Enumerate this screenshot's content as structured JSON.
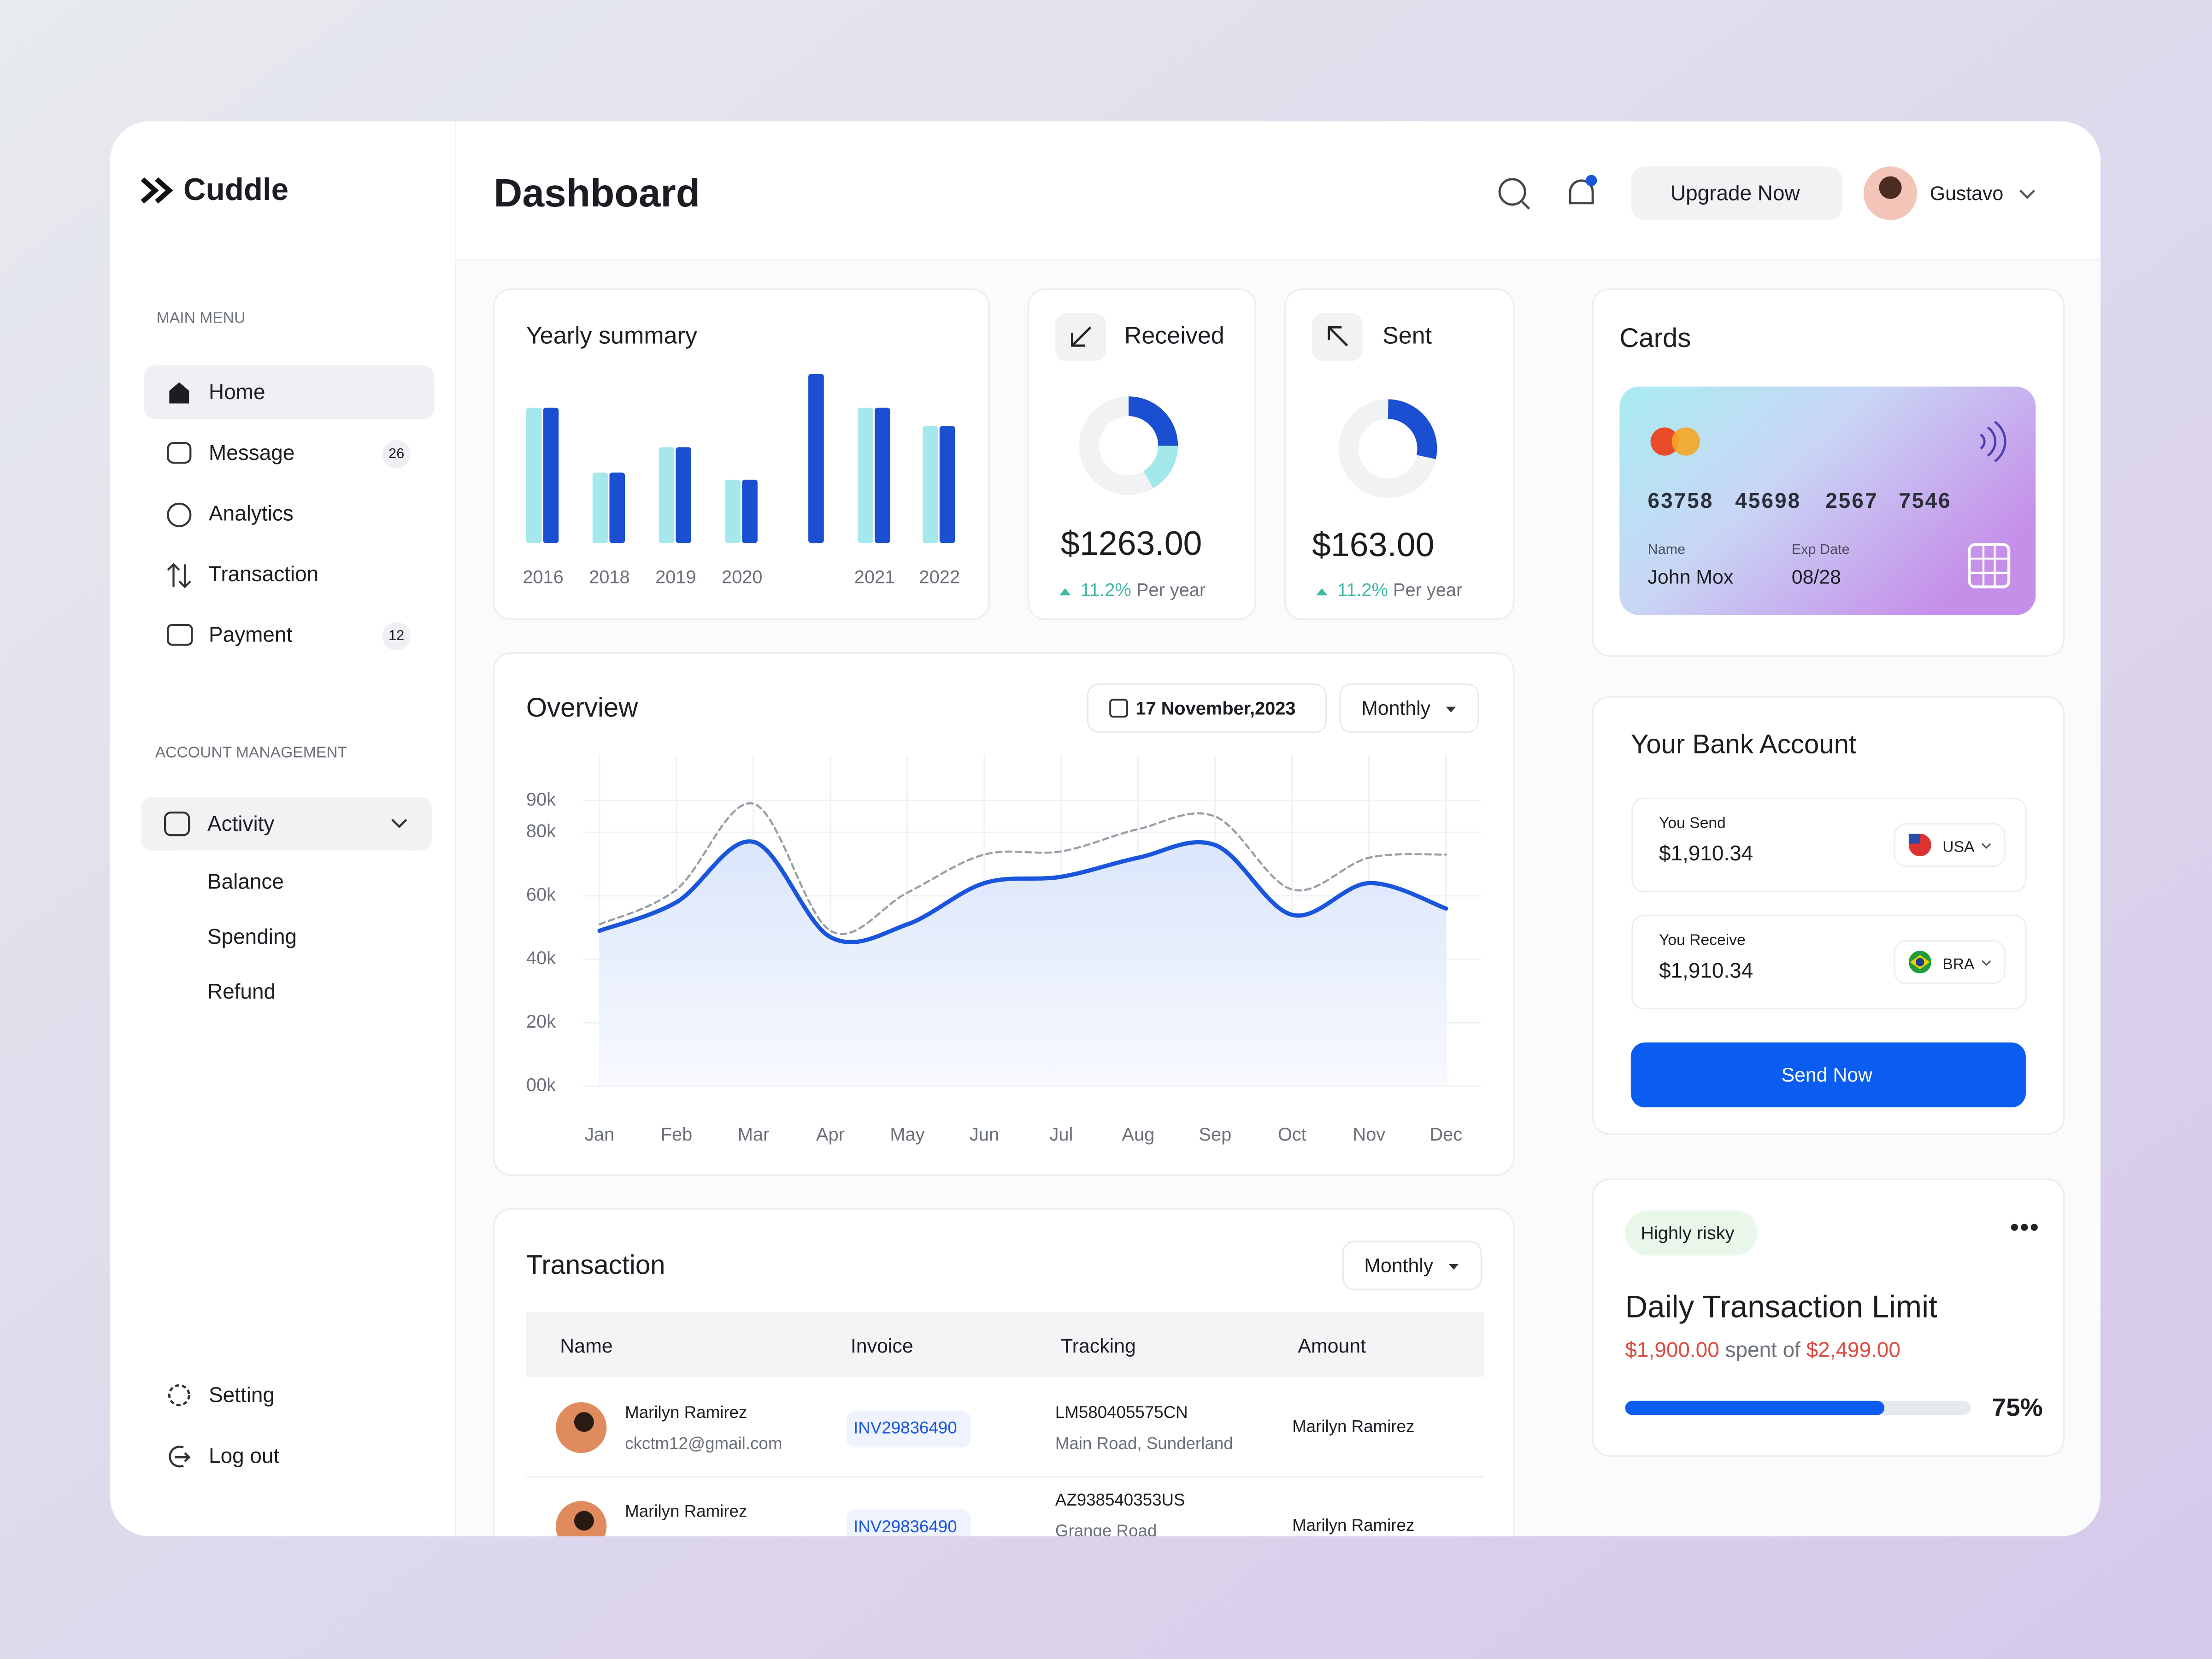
{
  "brand": "Cuddle",
  "header": {
    "title": "Dashboard",
    "upgrade": "Upgrade Now",
    "user": "Gustavo"
  },
  "sidebar": {
    "main_menu_label": "MAIN MENU",
    "main_menu": [
      {
        "label": "Home"
      },
      {
        "label": "Message",
        "badge": "26"
      },
      {
        "label": "Analytics"
      },
      {
        "label": "Transaction"
      },
      {
        "label": "Payment",
        "badge": "12"
      }
    ],
    "account_label": "ACCOUNT MANAGEMENT",
    "activity": "Activity",
    "activity_items": [
      "Balance",
      "Spending",
      "Refund"
    ],
    "footer": [
      "Setting",
      "Log out"
    ]
  },
  "yearly_summary": {
    "title": "Yearly summary",
    "categories": [
      "2016",
      "2018",
      "2019",
      "2020",
      "2021",
      "2022"
    ],
    "series": [
      {
        "color": "#a5e8ec",
        "values": [
          96,
          50,
          68,
          45,
          96,
          83
        ]
      },
      {
        "color": "#1b4fd1",
        "values": [
          96,
          50,
          68,
          45,
          96,
          83
        ]
      }
    ],
    "extra_bar": {
      "color": "#1b4fd1",
      "value": 120
    }
  },
  "received": {
    "title": "Received",
    "amount": "$1263.00",
    "change": "11.2%",
    "period": "Per year"
  },
  "sent": {
    "title": "Sent",
    "amount": "$163.00",
    "change": "11.2%",
    "period": "Per year"
  },
  "overview": {
    "title": "Overview",
    "date": "17 November,2023",
    "period": "Monthly",
    "categories": [
      "Jan",
      "Feb",
      "Mar",
      "Apr",
      "May",
      "Jun",
      "Jul",
      "Aug",
      "Sep",
      "Oct",
      "Nov",
      "Dec"
    ],
    "ylim": [
      0,
      100000
    ],
    "yticks": [
      {
        "value": 0,
        "label": "00k"
      },
      {
        "value": 20000,
        "label": "20k"
      },
      {
        "value": 40000,
        "label": "40k"
      },
      {
        "value": 60000,
        "label": "60k"
      },
      {
        "value": 80000,
        "label": "80k"
      },
      {
        "value": 90000,
        "label": "90k"
      }
    ],
    "series": [
      {
        "color": "#1a56db",
        "style": "solid",
        "values": [
          49000,
          58000,
          77000,
          47000,
          51000,
          64000,
          66000,
          72000,
          76000,
          54000,
          64000,
          56000
        ]
      },
      {
        "color": "#9aa0a8",
        "style": "dashed",
        "values": [
          51000,
          62000,
          89000,
          49000,
          61000,
          73000,
          74000,
          81000,
          85000,
          62000,
          72000,
          73000
        ]
      }
    ]
  },
  "transaction": {
    "title": "Transaction",
    "period": "Monthly",
    "headers": [
      "Name",
      "Invoice",
      "Tracking",
      "Amount"
    ],
    "rows": [
      {
        "name": "Marilyn Ramirez",
        "email": "ckctm12@gmail.com",
        "invoice": "INV29836490",
        "tracking": "LM580405575CN",
        "address": "Main Road, Sunderland",
        "amount": "Marilyn Ramirez"
      },
      {
        "name": "Marilyn Ramirez",
        "invoice": "INV29836490",
        "tracking": "AZ938540353US",
        "address": "Grange Road",
        "amount": "Marilyn Ramirez"
      }
    ]
  },
  "cards": {
    "title": "Cards",
    "number": [
      "63758",
      "45698",
      "2567",
      "7546"
    ],
    "name_label": "Name",
    "name": "John Mox",
    "exp_label": "Exp Date",
    "exp": "08/28"
  },
  "bank": {
    "title": "Your Bank Account",
    "send": {
      "label": "You Send",
      "amount": "$1,910.34",
      "currency": "USA"
    },
    "receive": {
      "label": "You Receive",
      "amount": "$1,910.34",
      "currency": "BRA"
    },
    "button": "Send Now"
  },
  "limit": {
    "tag": "Highly risky",
    "title": "Daily Transaction Limit",
    "spent": "$1,900.00",
    "spent_text": "spent of",
    "limit": "$2,499.00",
    "progress": {
      "value": 75,
      "label": "75%"
    }
  }
}
